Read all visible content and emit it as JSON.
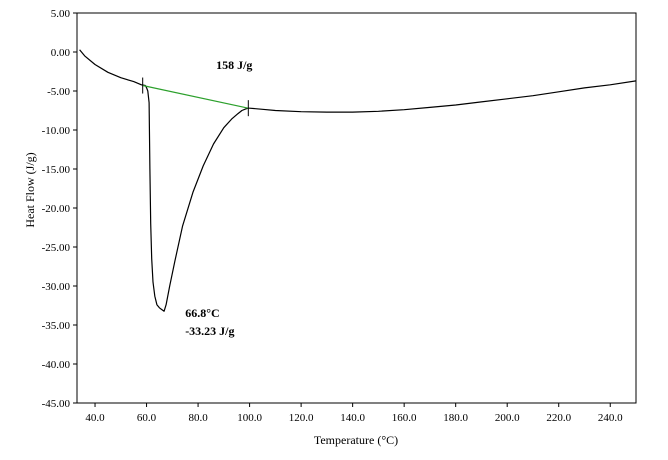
{
  "chart_data": {
    "type": "line",
    "title": "",
    "xlabel": "Temperature (°C)",
    "ylabel": "Heat Flow (J/g)",
    "xlim": [
      33,
      250
    ],
    "ylim": [
      -45,
      5
    ],
    "x_ticks": [
      40,
      60,
      80,
      100,
      120,
      140,
      160,
      180,
      200,
      220,
      240
    ],
    "x_tick_labels": [
      "40.0",
      "60.0",
      "80.0",
      "100.0",
      "120.0",
      "140.0",
      "160.0",
      "180.0",
      "200.0",
      "220.0",
      "240.0"
    ],
    "y_ticks": [
      5,
      0,
      -5,
      -10,
      -15,
      -20,
      -25,
      -30,
      -35,
      -40,
      -45
    ],
    "y_tick_labels": [
      "5.00",
      "0.00",
      "-5.00",
      "-10.00",
      "-15.00",
      "-20.00",
      "-25.00",
      "-30.00",
      "-35.00",
      "-40.00",
      "-45.00"
    ],
    "grid": false,
    "series": [
      {
        "color": "#000000",
        "x": [
          34,
          36,
          40,
          45,
          50,
          55,
          58,
          59.5,
          60,
          60.5,
          61,
          61.3,
          61.6,
          62,
          62.5,
          63.2,
          64,
          65,
          65.8,
          66.8,
          67.6,
          69,
          71,
          74,
          78,
          82,
          86,
          90,
          93,
          95.5,
          97,
          98.5,
          99.5,
          100,
          105,
          110,
          120,
          130,
          140,
          150,
          160,
          170,
          180,
          190,
          200,
          210,
          220,
          230,
          240,
          250
        ],
        "y": [
          0.3,
          -0.5,
          -1.6,
          -2.6,
          -3.3,
          -3.8,
          -4.2,
          -4.3,
          -4.6,
          -5.0,
          -6.5,
          -15,
          -22,
          -26.5,
          -29.5,
          -31.3,
          -32.4,
          -32.8,
          -33.0,
          -33.23,
          -32.4,
          -30.0,
          -26.8,
          -22.3,
          -18.0,
          -14.6,
          -11.8,
          -9.7,
          -8.6,
          -7.9,
          -7.5,
          -7.3,
          -7.2,
          -7.2,
          -7.35,
          -7.5,
          -7.65,
          -7.7,
          -7.7,
          -7.6,
          -7.4,
          -7.1,
          -6.8,
          -6.4,
          -6.0,
          -5.6,
          -5.1,
          -4.6,
          -4.2,
          -3.7
        ]
      },
      {
        "color": "#2ca02c",
        "x": [
          58.5,
          99.5
        ],
        "y": [
          -4.3,
          -7.2
        ]
      }
    ],
    "annotations": [
      {
        "text": "158 J/g",
        "x": 87,
        "y": -2.2
      },
      {
        "text": "66.8°C",
        "x": 75,
        "y": -34.0
      },
      {
        "text": "-33.23 J/g",
        "x": 75,
        "y": -36.3
      }
    ],
    "markers": [
      {
        "x": 58.5,
        "y": -4.3
      },
      {
        "x": 99.5,
        "y": -7.2
      }
    ]
  }
}
